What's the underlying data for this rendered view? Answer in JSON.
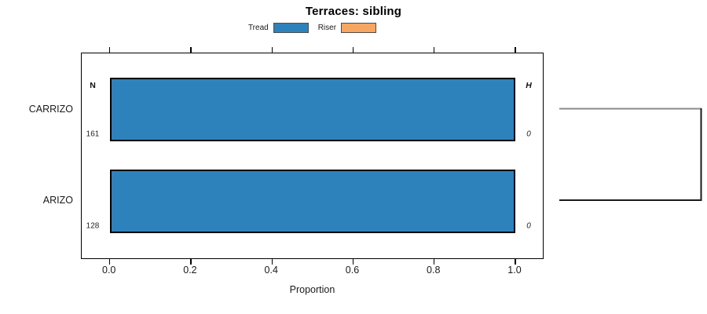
{
  "title": "Terraces: sibling",
  "chart_data": {
    "type": "bar",
    "orientation": "horizontal",
    "title": "Terraces: sibling",
    "xlabel": "Proportion",
    "xlim": [
      0,
      1.05
    ],
    "xticks": [
      0.0,
      0.2,
      0.4,
      0.6,
      0.8,
      1.0
    ],
    "xtick_labels": [
      "0.0",
      "0.2",
      "0.4",
      "0.6",
      "0.8",
      "1.0"
    ],
    "categories": [
      "CARRIZO",
      "ARIZO"
    ],
    "series": [
      {
        "name": "Tread",
        "color": "#2E82BC",
        "values": [
          1.0,
          1.0
        ]
      },
      {
        "name": "Riser",
        "color": "#F6A661",
        "values": [
          0.0,
          0.0
        ]
      }
    ],
    "annotations": {
      "n_header": "N",
      "h_header": "H",
      "n_values": [
        "161",
        "128"
      ],
      "h_values": [
        "0",
        "0"
      ]
    },
    "legend_position": "top",
    "grid": false,
    "linkage_bracket": {
      "connects": [
        "CARRIZO",
        "ARIZO"
      ],
      "side": "right"
    }
  },
  "colors": {
    "tread_fill": "#2E82BC",
    "riser_fill": "#F6A661",
    "bar_border": "#000000",
    "bracket_top": "#8a8a8a",
    "bracket_main": "#1a1a1a"
  }
}
